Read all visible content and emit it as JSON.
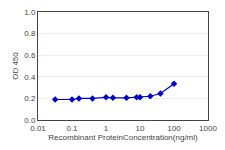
{
  "chart_data": {
    "type": "line",
    "x": [
      0.032,
      0.1,
      0.16,
      0.4,
      1.0,
      1.6,
      4.0,
      8.0,
      10.0,
      20.0,
      40.0,
      100.0
    ],
    "values": [
      0.19,
      0.19,
      0.2,
      0.2,
      0.21,
      0.205,
      0.205,
      0.21,
      0.21,
      0.22,
      0.245,
      0.335
    ],
    "color": "#0000cc",
    "marker": "diamond",
    "xlabel": "Recombinant ProteinConcentration(ng/ml)",
    "ylabel": "OD 450",
    "log": "x",
    "xlim": [
      0.01,
      1000
    ],
    "xticks": [
      0.01,
      0.1,
      1,
      10,
      100,
      1000
    ],
    "ylim": [
      0,
      1
    ],
    "yticks": [
      {
        "value": 0,
        "label": "0.0"
      },
      0.2,
      0.4,
      0.6,
      0.8,
      {
        "value": 1,
        "label": "1.0"
      }
    ],
    "grid": "y"
  }
}
